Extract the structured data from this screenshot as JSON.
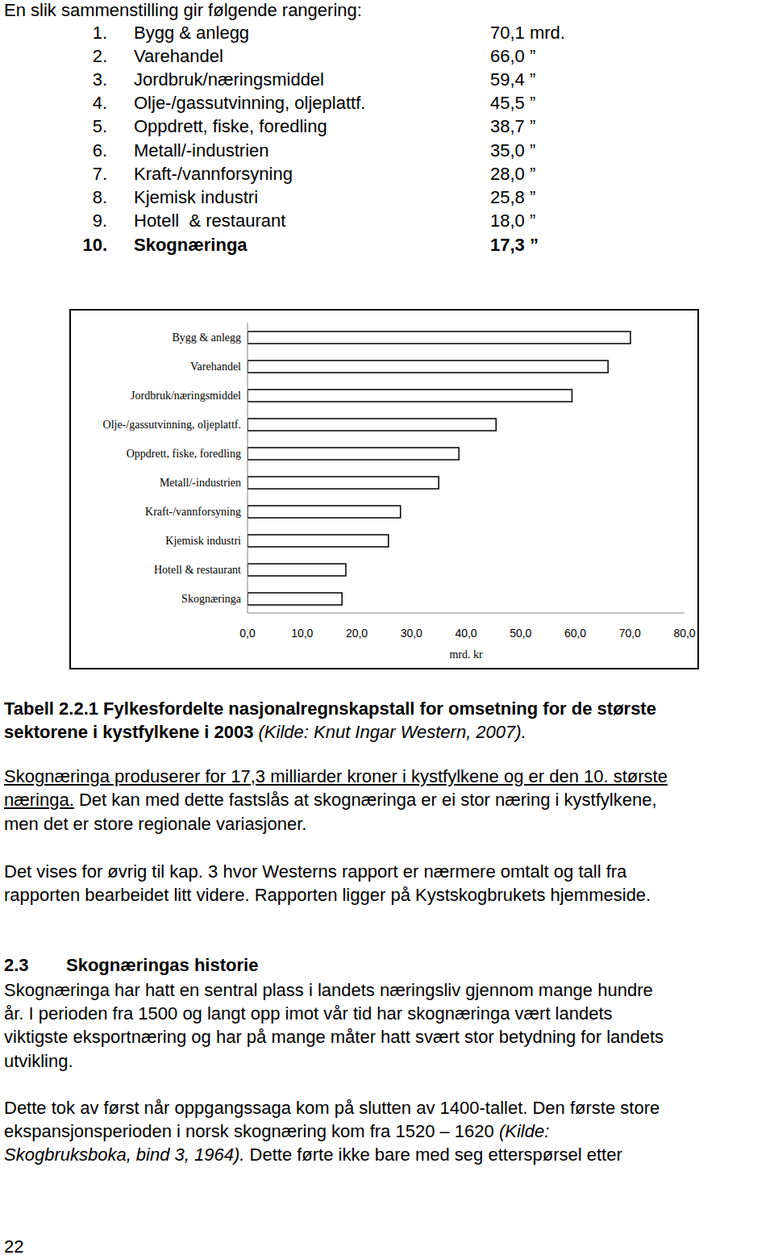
{
  "intro": "En slik sammenstilling gir følgende rangering:",
  "ranking": [
    {
      "rank": "1.",
      "label": "Bygg & anlegg",
      "value": "70,1 mrd."
    },
    {
      "rank": "2.",
      "label": "Varehandel",
      "value": "66,0 ”"
    },
    {
      "rank": "3.",
      "label": "Jordbruk/næringsmiddel",
      "value": "59,4 ”"
    },
    {
      "rank": "4.",
      "label": "Olje-/gassutvinning, oljeplattf.",
      "value": "45,5 ”"
    },
    {
      "rank": "5.",
      "label": "Oppdrett, fiske, foredling",
      "value": "38,7 ”"
    },
    {
      "rank": "6.",
      "label": "Metall/-industrien",
      "value": "35,0 ”"
    },
    {
      "rank": "7.",
      "label": "Kraft-/vannforsyning",
      "value": "28,0 ”"
    },
    {
      "rank": "8.",
      "label": "Kjemisk industri",
      "value": "25,8 ”"
    },
    {
      "rank": "9.",
      "label": "Hotell  & restaurant",
      "value": "18,0 ”"
    },
    {
      "rank": "10.",
      "label": "Skognæringa",
      "value": "17,3 ”",
      "style": "bold"
    }
  ],
  "chart_data": {
    "type": "bar",
    "orientation": "horizontal",
    "categories": [
      "Bygg & anlegg",
      "Varehandel",
      "Jordbruk/næringsmiddel",
      "Olje-/gassutvinning, oljeplattf.",
      "Oppdrett, fiske, foredling",
      "Metall/-industrien",
      "Kraft-/vannforsyning",
      "Kjemisk industri",
      "Hotell  & restaurant",
      "Skognæringa"
    ],
    "values": [
      70.1,
      66.0,
      59.4,
      45.5,
      38.7,
      35.0,
      28.0,
      25.8,
      18.0,
      17.3
    ],
    "color": "#ffffff",
    "xlabel": "mrd. kr",
    "xlim": [
      0,
      80
    ],
    "xticks": [
      {
        "value": 0,
        "label": "0,0"
      },
      {
        "value": 10,
        "label": "10,0"
      },
      {
        "value": 20,
        "label": "20,0"
      },
      {
        "value": 30,
        "label": "30,0"
      },
      {
        "value": 40,
        "label": "40,0"
      },
      {
        "value": 50,
        "label": "50,0"
      },
      {
        "value": 60,
        "label": "60,0"
      },
      {
        "value": 70,
        "label": "70,0"
      },
      {
        "value": 80,
        "label": "80,0"
      }
    ],
    "grid": false
  },
  "caption": [
    [
      {
        "text": "Tabell 2.2.1 Fylkesfordelte nasjonalregnskapstall for omsetning for de største",
        "style": "bold"
      }
    ],
    [
      {
        "text": "sektorene i kystfylkene i 2003",
        "style": "bold"
      },
      {
        "text": " (Kilde: Knut Ingar Western, 2007).",
        "style": "italic"
      }
    ]
  ],
  "paragraph_1": [
    [
      {
        "text": "Skognæringa produserer for 17,3 milliarder kroner i kystfylkene og er den 10. største",
        "style": "underline"
      }
    ],
    [
      {
        "text": "næringa.",
        "style": "underline"
      },
      {
        "text": " Det kan med dette fastslås at skognæringa er ei stor næring i kystfylkene,"
      }
    ],
    [
      {
        "text": "men det er store regionale variasjoner."
      }
    ]
  ],
  "paragraph_2": [
    [
      {
        "text": "Det vises for øvrig til kap. 3 hvor Westerns rapport er nærmere omtalt og tall fra"
      }
    ],
    [
      {
        "text": "rapporten bearbeidet litt videre. Rapporten ligger på Kystskogbrukets hjemmeside."
      }
    ]
  ],
  "heading": {
    "number": "2.3",
    "title": "Skognæringas historie"
  },
  "paragraph_3": [
    [
      {
        "text": "Skognæringa har hatt en sentral plass i landets næringsliv gjennom mange hundre"
      }
    ],
    [
      {
        "text": "år. I perioden fra 1500 og langt opp imot vår tid har skognæringa vært landets"
      }
    ],
    [
      {
        "text": "viktigste eksportnæring og har på mange måter hatt svært stor betydning for landets"
      }
    ],
    [
      {
        "text": "utvikling."
      }
    ]
  ],
  "paragraph_4": [
    [
      {
        "text": "Dette tok av først når oppgangssaga kom på slutten av 1400-tallet. Den første store"
      }
    ],
    [
      {
        "text": "ekspansjonsperioden i norsk skognæring kom fra 1520 – 1620 "
      },
      {
        "text": "(Kilde:",
        "style": "italic"
      }
    ],
    [
      {
        "text": "Skogbruksboka, bind 3, 1964).",
        "style": "italic"
      },
      {
        "text": " Dette førte ikke bare med seg etterspørsel etter"
      }
    ]
  ],
  "page_number": "22"
}
